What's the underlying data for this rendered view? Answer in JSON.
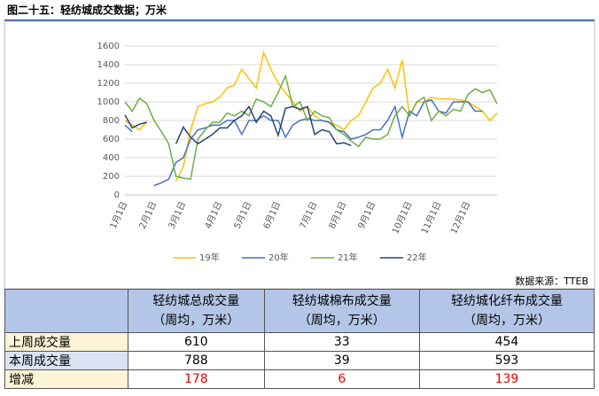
{
  "header": {
    "title": "图二十五：轻纺城成交数据；万米"
  },
  "chart_data": {
    "type": "line",
    "categories": [
      "1月1日",
      null,
      null,
      null,
      "2月1日",
      null,
      null,
      null,
      "3月1日",
      null,
      null,
      null,
      null,
      "4月1日",
      null,
      null,
      null,
      "5月1日",
      null,
      null,
      null,
      "6月1日",
      null,
      null,
      null,
      null,
      "7月1日",
      null,
      null,
      null,
      "8月1日",
      null,
      null,
      null,
      "9月1日",
      null,
      null,
      null,
      null,
      "10月1日",
      null,
      null,
      null,
      "11月1日",
      null,
      null,
      null,
      "12月1日",
      null,
      null,
      null,
      null
    ],
    "series": [
      {
        "name": "19年",
        "color": "#ffc000",
        "values": [
          800,
          750,
          700,
          790,
          null,
          null,
          null,
          150,
          300,
          700,
          950,
          980,
          1000,
          1050,
          1150,
          1180,
          1350,
          1250,
          1150,
          1530,
          1350,
          1200,
          1100,
          1000,
          900,
          950,
          850,
          800,
          780,
          750,
          700,
          800,
          850,
          1000,
          1150,
          1200,
          1350,
          1150,
          1450,
          850,
          1000,
          1000,
          1050,
          1030,
          1030,
          1030,
          1020,
          1000,
          950,
          900,
          800,
          880
        ]
      },
      {
        "name": "20年",
        "color": "#4472c4",
        "values": [
          750,
          680,
          null,
          null,
          100,
          130,
          170,
          350,
          400,
          600,
          700,
          720,
          750,
          750,
          800,
          800,
          650,
          800,
          800,
          850,
          800,
          800,
          620,
          750,
          800,
          820,
          800,
          800,
          780,
          700,
          680,
          600,
          620,
          650,
          700,
          700,
          800,
          950,
          620,
          900,
          850,
          1000,
          1020,
          900,
          880,
          1000,
          1000,
          1000,
          900,
          900,
          null,
          null
        ]
      },
      {
        "name": "21年",
        "color": "#70ad47",
        "values": [
          1000,
          900,
          1040,
          980,
          800,
          680,
          550,
          200,
          180,
          170,
          600,
          700,
          780,
          780,
          880,
          850,
          900,
          850,
          1030,
          1000,
          950,
          1100,
          1280,
          950,
          1000,
          800,
          900,
          850,
          830,
          700,
          650,
          580,
          520,
          620,
          600,
          600,
          650,
          850,
          950,
          850,
          1000,
          1050,
          800,
          900,
          850,
          920,
          900,
          1080,
          1140,
          1100,
          1130,
          980
        ]
      },
      {
        "name": "22年",
        "color": "#264478",
        "values": [
          860,
          720,
          760,
          780,
          null,
          null,
          null,
          550,
          730,
          620,
          550,
          600,
          650,
          720,
          720,
          800,
          850,
          950,
          780,
          900,
          850,
          640,
          930,
          950,
          920,
          950,
          650,
          700,
          680,
          550,
          560,
          530,
          null,
          null,
          null,
          null,
          null,
          null,
          null,
          null,
          null,
          null,
          null,
          null,
          null,
          null,
          null,
          null,
          null,
          null,
          null,
          null
        ]
      }
    ],
    "ylim": [
      0,
      1600
    ],
    "yticks": [
      0,
      200,
      400,
      600,
      800,
      1000,
      1200,
      1400,
      1600
    ],
    "grid": true,
    "legend": "bottom"
  },
  "source": "数据来源：TTEB",
  "table": {
    "columns": [
      {
        "name": "轻纺城总成交量",
        "unit": "（周均，万米）"
      },
      {
        "name": "轻纺城棉布成交量",
        "unit": "（周均，万米）"
      },
      {
        "name": "轻纺城化纤布成交量",
        "unit": "（周均，万米）"
      }
    ],
    "rows": [
      [
        "上周成交量",
        610,
        33,
        454
      ],
      [
        "本周成交量",
        788,
        39,
        593
      ],
      [
        "增减",
        178,
        6,
        139
      ]
    ]
  }
}
